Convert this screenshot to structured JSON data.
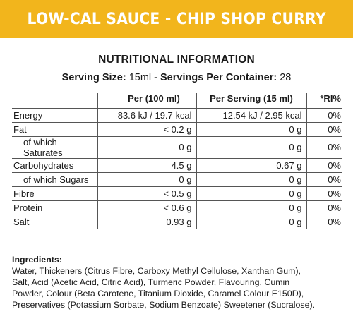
{
  "banner": {
    "title": "LOW-CAL SAUCE - CHIP SHOP CURRY"
  },
  "heading": "NUTRITIONAL INFORMATION",
  "serving": {
    "size_label": "Serving Size:",
    "size_value": " 15ml - ",
    "per_container_label": "Servings Per Container:",
    "per_container_value": " 28"
  },
  "table": {
    "headers": [
      "",
      "Per (100 ml)",
      "Per Serving (15 ml)",
      "*RI%"
    ],
    "rows": [
      {
        "name": "Energy",
        "per100": "83.6 kJ / 19.7 kcal",
        "serving": "12.54 kJ / 2.95 kcal",
        "ri": "0%"
      },
      {
        "name": "Fat",
        "per100": "< 0.2 g",
        "serving": "0 g",
        "ri": "0%"
      },
      {
        "name": "of which Saturates",
        "per100": "0 g",
        "serving": "0 g",
        "ri": "0%"
      },
      {
        "name": "Carbohydrates",
        "per100": "4.5 g",
        "serving": "0.67 g",
        "ri": "0%"
      },
      {
        "name": "of which Sugars",
        "per100": "0 g",
        "serving": "0 g",
        "ri": "0%"
      },
      {
        "name": "Fibre",
        "per100": "< 0.5 g",
        "serving": "0 g",
        "ri": "0%"
      },
      {
        "name": "Protein",
        "per100": "< 0.6 g",
        "serving": "0 g",
        "ri": "0%"
      },
      {
        "name": "Salt",
        "per100": "0.93 g",
        "serving": "0 g",
        "ri": "0%"
      }
    ]
  },
  "ingredients": {
    "title": "Ingredients:",
    "lines": [
      "Water, Thickeners (Citrus Fibre, Carboxy Methyl Cellulose, Xanthan Gum),",
      "Salt, Acid (Acetic Acid, Citric Acid), Turmeric Powder, Flavouring, Cumin",
      "Powder, Colour (Beta Carotene, Titanium Dioxide, Caramel Colour E150D),",
      "Preservatives (Potassium Sorbate, Sodium Benzoate) Sweetener (Sucralose)."
    ]
  },
  "colors": {
    "banner": "#f2b51c",
    "banner_text": "#ffffff",
    "text": "#1a1a1a"
  }
}
